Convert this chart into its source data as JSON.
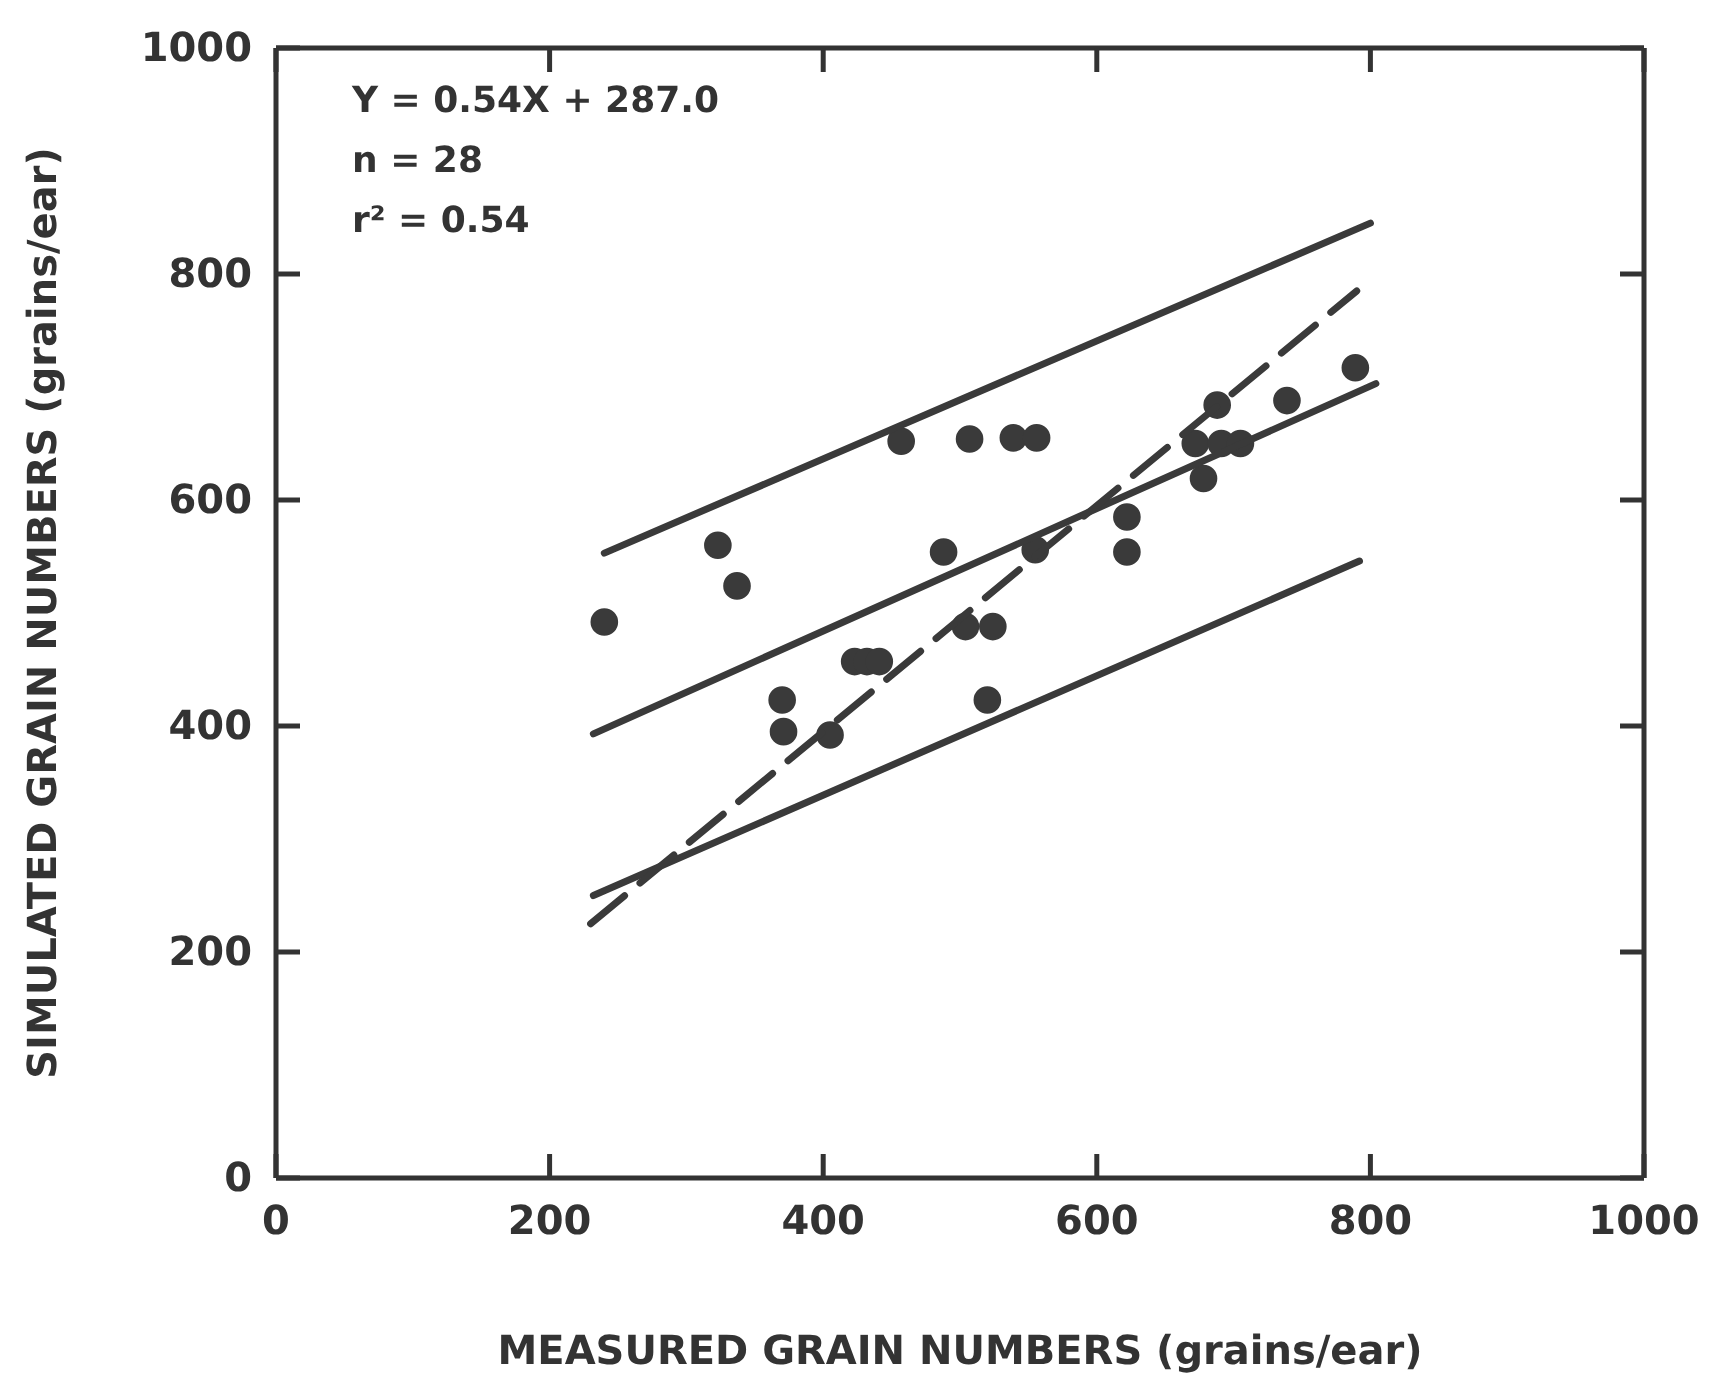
{
  "chart_data": {
    "type": "scatter",
    "xlabel": "MEASURED GRAIN NUMBERS (grains/ear)",
    "ylabel": "SIMULATED GRAIN NUMBERS (grains/ear)",
    "annotations": [
      "Y = 0.54X + 287.0",
      "n = 28",
      "r² = 0.54"
    ],
    "xlim": [
      0,
      1000
    ],
    "ylim": [
      0,
      1000
    ],
    "xticks": [
      0,
      200,
      400,
      600,
      800,
      1000
    ],
    "yticks": [
      0,
      200,
      400,
      600,
      800,
      1000
    ],
    "grid": false,
    "series": [
      {
        "marker": "circle",
        "color": "#3a3a3a",
        "x": [
          240,
          323,
          337,
          370,
          371,
          405,
          423,
          432,
          441,
          457,
          507,
          539,
          556,
          488,
          555,
          504,
          524,
          520,
          622,
          622,
          678,
          672,
          691,
          705,
          688,
          739,
          789
        ],
        "values": [
          492,
          560,
          524,
          423,
          395,
          392,
          457,
          457,
          457,
          652,
          654,
          655,
          655,
          554,
          556,
          488,
          488,
          423,
          585,
          554,
          619,
          650,
          650,
          650,
          684,
          688,
          717
        ]
      },
      {
        "type": "line",
        "marker": "none",
        "line_style": "solid",
        "color": "#3a3a3a",
        "x": [
          240,
          800
        ],
        "values": [
          553,
          845
        ]
      },
      {
        "type": "line",
        "marker": "none",
        "line_style": "solid",
        "color": "#3a3a3a",
        "x": [
          232,
          804
        ],
        "values": [
          393,
          703
        ]
      },
      {
        "type": "line",
        "marker": "none",
        "line_style": "solid",
        "color": "#3a3a3a",
        "x": [
          232,
          792
        ],
        "values": [
          250,
          546
        ]
      },
      {
        "type": "line",
        "marker": "none",
        "line_style": "dashed",
        "color": "#3a3a3a",
        "x": [
          230,
          790
        ],
        "values": [
          225,
          785
        ]
      }
    ]
  }
}
